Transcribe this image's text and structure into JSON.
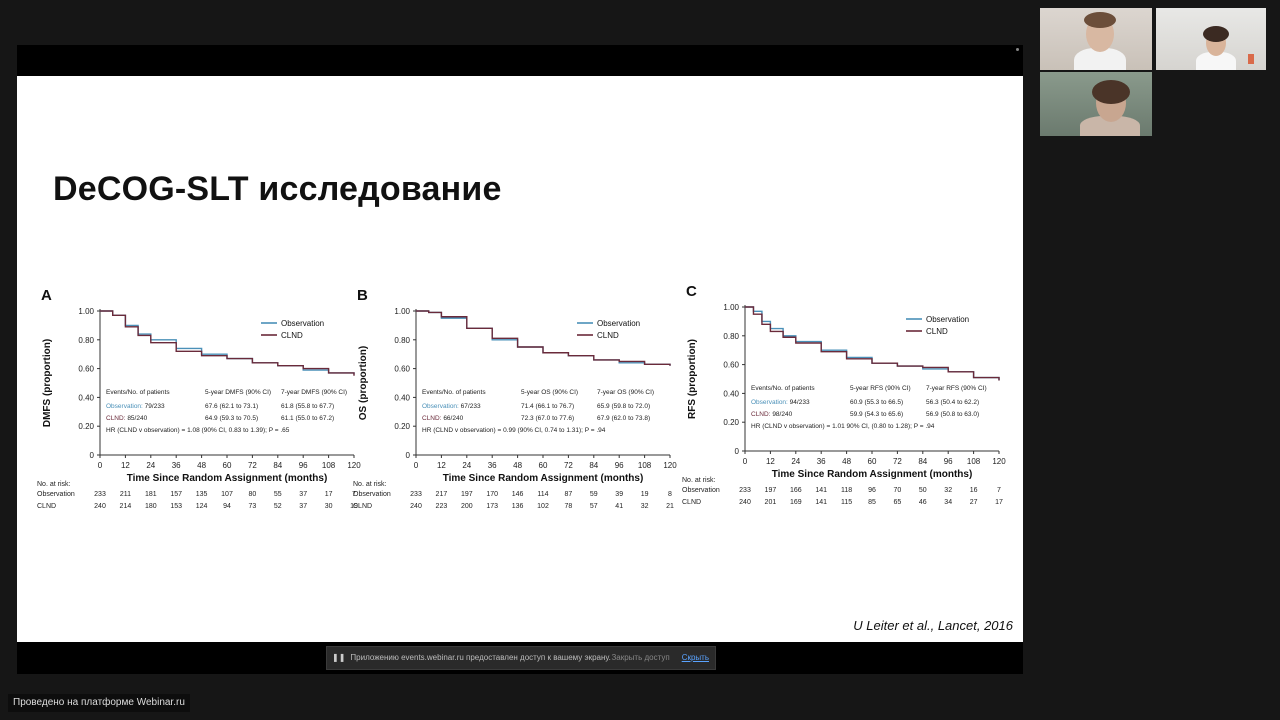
{
  "slide": {
    "title": "DeCOG-SLT исследование",
    "citation": "U Leiter et al., Lancet, 2016"
  },
  "notification": {
    "pause_icon": "pause-icon",
    "message": "Приложению events.webinar.ru предоставлен доступ к вашему экрану.",
    "stop_label": "Закрыть доступ",
    "hide_label": "Скрыть"
  },
  "platform_badge": "Проведено на платформе Webinar.ru",
  "chart_data": [
    {
      "type": "line",
      "panel_label": "A",
      "ylabel": "DMFS (proportion)",
      "xlabel": "Time Since Random Assignment (months)",
      "xticks": [
        "0",
        "12",
        "24",
        "36",
        "48",
        "60",
        "72",
        "84",
        "96",
        "108",
        "120"
      ],
      "yticks": [
        "0",
        "0.20",
        "0.40",
        "0.60",
        "0.80",
        "1.00"
      ],
      "xlim": [
        0,
        120
      ],
      "ylim": [
        0,
        1
      ],
      "series": [
        {
          "name": "Observation",
          "color": "#4a90b8",
          "x": [
            0,
            6,
            12,
            18,
            24,
            36,
            48,
            60,
            72,
            84,
            96,
            108,
            120
          ],
          "y": [
            1.0,
            0.97,
            0.9,
            0.84,
            0.8,
            0.74,
            0.7,
            0.67,
            0.64,
            0.62,
            0.59,
            0.57,
            0.56
          ]
        },
        {
          "name": "CLND",
          "color": "#6a2a3a",
          "x": [
            0,
            6,
            12,
            18,
            24,
            36,
            48,
            60,
            72,
            84,
            96,
            108,
            120
          ],
          "y": [
            1.0,
            0.97,
            0.89,
            0.83,
            0.78,
            0.72,
            0.69,
            0.67,
            0.64,
            0.62,
            0.6,
            0.57,
            0.55
          ]
        }
      ],
      "table": {
        "headers": [
          "Events/No. of patients",
          "5-year DMFS (90% CI)",
          "7-year DMFS (90% CI)"
        ],
        "rows": [
          {
            "label": "Observation:",
            "events": "79/233",
            "y5": "67.6 (62.1 to 73.1)",
            "y7": "61.8 (55.8 to 67.7)"
          },
          {
            "label": "CLND:",
            "events": "85/240",
            "y5": "64.9 (59.3 to 70.5)",
            "y7": "61.1 (55.0 to 67.2)"
          }
        ],
        "hr": "HR (CLND v observation) = 1.08 (90% CI, 0.83 to 1.39); P = .65"
      },
      "at_risk": {
        "header": "No. at risk:",
        "rows": [
          {
            "label": "Observation",
            "values": [
              "233",
              "211",
              "181",
              "157",
              "135",
              "107",
              "80",
              "55",
              "37",
              "17",
              "7"
            ]
          },
          {
            "label": "CLND",
            "values": [
              "240",
              "214",
              "180",
              "153",
              "124",
              "94",
              "73",
              "52",
              "37",
              "30",
              "19"
            ]
          }
        ]
      }
    },
    {
      "type": "line",
      "panel_label": "B",
      "ylabel": "OS (proportion)",
      "xlabel": "Time Since Random Assignment (months)",
      "xticks": [
        "0",
        "12",
        "24",
        "36",
        "48",
        "60",
        "72",
        "84",
        "96",
        "108",
        "120"
      ],
      "yticks": [
        "0",
        "0.20",
        "0.40",
        "0.60",
        "0.80",
        "1.00"
      ],
      "xlim": [
        0,
        120
      ],
      "ylim": [
        0,
        1
      ],
      "series": [
        {
          "name": "Observation",
          "color": "#4a90b8",
          "x": [
            0,
            6,
            12,
            24,
            36,
            48,
            60,
            72,
            84,
            96,
            108,
            120
          ],
          "y": [
            1.0,
            0.99,
            0.95,
            0.88,
            0.8,
            0.75,
            0.71,
            0.69,
            0.66,
            0.64,
            0.63,
            0.62
          ]
        },
        {
          "name": "CLND",
          "color": "#6a2a3a",
          "x": [
            0,
            6,
            12,
            24,
            36,
            48,
            60,
            72,
            84,
            96,
            108,
            120
          ],
          "y": [
            1.0,
            0.99,
            0.96,
            0.88,
            0.81,
            0.75,
            0.71,
            0.69,
            0.66,
            0.65,
            0.63,
            0.62
          ]
        }
      ],
      "table": {
        "headers": [
          "Events/No. of patients",
          "5-year OS (90% CI)",
          "7-year OS (90% CI)"
        ],
        "rows": [
          {
            "label": "Observation:",
            "events": "67/233",
            "y5": "71.4 (66.1 to 76.7)",
            "y7": "65.9 (59.8 to 72.0)"
          },
          {
            "label": "CLND:",
            "events": "66/240",
            "y5": "72.3 (67.0 to 77.6)",
            "y7": "67.9 (62.0 to 73.8)"
          }
        ],
        "hr": "HR (CLND v observation) = 0.99 (90% CI, 0.74 to 1.31); P = .94"
      },
      "at_risk": {
        "header": "No. at risk:",
        "rows": [
          {
            "label": "Observation",
            "values": [
              "233",
              "217",
              "197",
              "170",
              "146",
              "114",
              "87",
              "59",
              "39",
              "19",
              "8"
            ]
          },
          {
            "label": "CLND",
            "values": [
              "240",
              "223",
              "200",
              "173",
              "136",
              "102",
              "78",
              "57",
              "41",
              "32",
              "21"
            ]
          }
        ]
      }
    },
    {
      "type": "line",
      "panel_label": "C",
      "ylabel": "RFS (proportion)",
      "xlabel": "Time Since Random Assignment (months)",
      "xticks": [
        "0",
        "12",
        "24",
        "36",
        "48",
        "60",
        "72",
        "84",
        "96",
        "108",
        "120"
      ],
      "yticks": [
        "0",
        "0.20",
        "0.40",
        "0.60",
        "0.80",
        "1.00"
      ],
      "xlim": [
        0,
        120
      ],
      "ylim": [
        0,
        1
      ],
      "series": [
        {
          "name": "Observation",
          "color": "#4a90b8",
          "x": [
            0,
            4,
            8,
            12,
            18,
            24,
            36,
            48,
            60,
            72,
            84,
            96,
            108,
            120
          ],
          "y": [
            1.0,
            0.97,
            0.9,
            0.85,
            0.8,
            0.76,
            0.7,
            0.65,
            0.61,
            0.59,
            0.57,
            0.55,
            0.51,
            0.49
          ]
        },
        {
          "name": "CLND",
          "color": "#6a2a3a",
          "x": [
            0,
            4,
            8,
            12,
            18,
            24,
            36,
            48,
            60,
            72,
            84,
            96,
            108,
            120
          ],
          "y": [
            1.0,
            0.95,
            0.88,
            0.83,
            0.79,
            0.75,
            0.69,
            0.64,
            0.61,
            0.59,
            0.58,
            0.55,
            0.51,
            0.49
          ]
        }
      ],
      "table": {
        "headers": [
          "Events/No. of patients",
          "5-year RFS (90% CI)",
          "7-year RFS (90% CI)"
        ],
        "rows": [
          {
            "label": "Observation:",
            "events": "94/233",
            "y5": "60.9 (55.3 to 66.5)",
            "y7": "56.3 (50.4 to 62.2)"
          },
          {
            "label": "CLND:",
            "events": "98/240",
            "y5": "59.9 (54.3 to 65.6)",
            "y7": "56.9 (50.8 to 63.0)"
          }
        ],
        "hr": "HR (CLND v observation) = 1.01 90% CI, (0.80 to 1.28); P = .94"
      },
      "at_risk": {
        "header": "No. at risk:",
        "rows": [
          {
            "label": "Observation",
            "values": [
              "233",
              "197",
              "166",
              "141",
              "118",
              "96",
              "70",
              "50",
              "32",
              "16",
              "7"
            ]
          },
          {
            "label": "CLND",
            "values": [
              "240",
              "201",
              "169",
              "141",
              "115",
              "85",
              "65",
              "46",
              "34",
              "27",
              "17"
            ]
          }
        ]
      }
    }
  ]
}
